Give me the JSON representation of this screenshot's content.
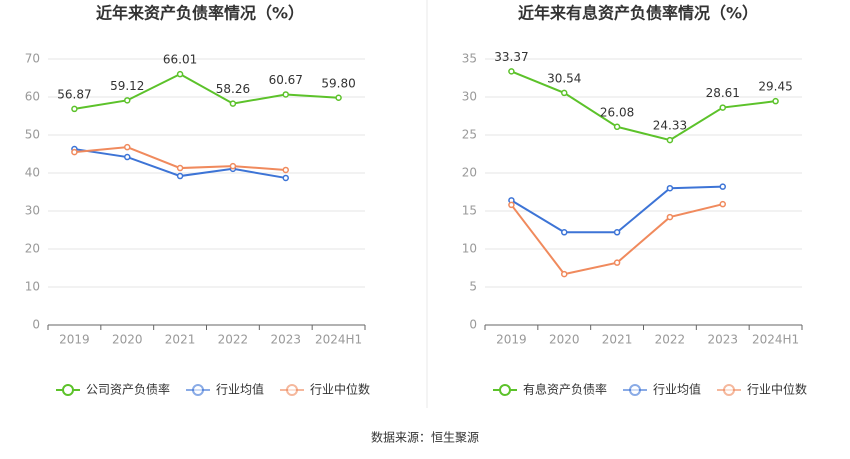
{
  "chart_data": [
    {
      "type": "line",
      "title": "近年来资产负债率情况（%）",
      "categories": [
        "2019",
        "2020",
        "2021",
        "2022",
        "2023",
        "2024H1"
      ],
      "ylim": [
        0,
        70
      ],
      "yticks": [
        0,
        10,
        20,
        30,
        40,
        50,
        60,
        70
      ],
      "grid": true,
      "series": [
        {
          "name": "公司资产负债率",
          "color": "#5cc22a",
          "values": [
            56.87,
            59.12,
            66.01,
            58.26,
            60.67,
            59.8
          ],
          "value_labels": [
            "56.87",
            "59.12",
            "66.01",
            "58.26",
            "60.67",
            "59.80"
          ]
        },
        {
          "name": "行业均值",
          "color": "#3d74d6",
          "values": [
            46.3,
            44.2,
            39.2,
            41.1,
            38.7,
            null
          ]
        },
        {
          "name": "行业中位数",
          "color": "#f08a5d",
          "values": [
            45.5,
            46.8,
            41.3,
            41.8,
            40.8,
            null
          ]
        }
      ]
    },
    {
      "type": "line",
      "title": "近年来有息资产负债率情况（%）",
      "categories": [
        "2019",
        "2020",
        "2021",
        "2022",
        "2023",
        "2024H1"
      ],
      "ylim": [
        0,
        35
      ],
      "yticks": [
        0,
        5,
        10,
        15,
        20,
        25,
        30,
        35
      ],
      "grid": true,
      "series": [
        {
          "name": "有息资产负债率",
          "color": "#5cc22a",
          "values": [
            33.37,
            30.54,
            26.08,
            24.33,
            28.61,
            29.45
          ],
          "value_labels": [
            "33.37",
            "30.54",
            "26.08",
            "24.33",
            "28.61",
            "29.45"
          ]
        },
        {
          "name": "行业均值",
          "color": "#3d74d6",
          "values": [
            16.4,
            12.2,
            12.2,
            18.0,
            18.2,
            null
          ]
        },
        {
          "name": "行业中位数",
          "color": "#f08a5d",
          "values": [
            15.8,
            6.7,
            8.2,
            14.2,
            15.9,
            null
          ]
        }
      ]
    }
  ],
  "source": "数据来源：恒生聚源"
}
